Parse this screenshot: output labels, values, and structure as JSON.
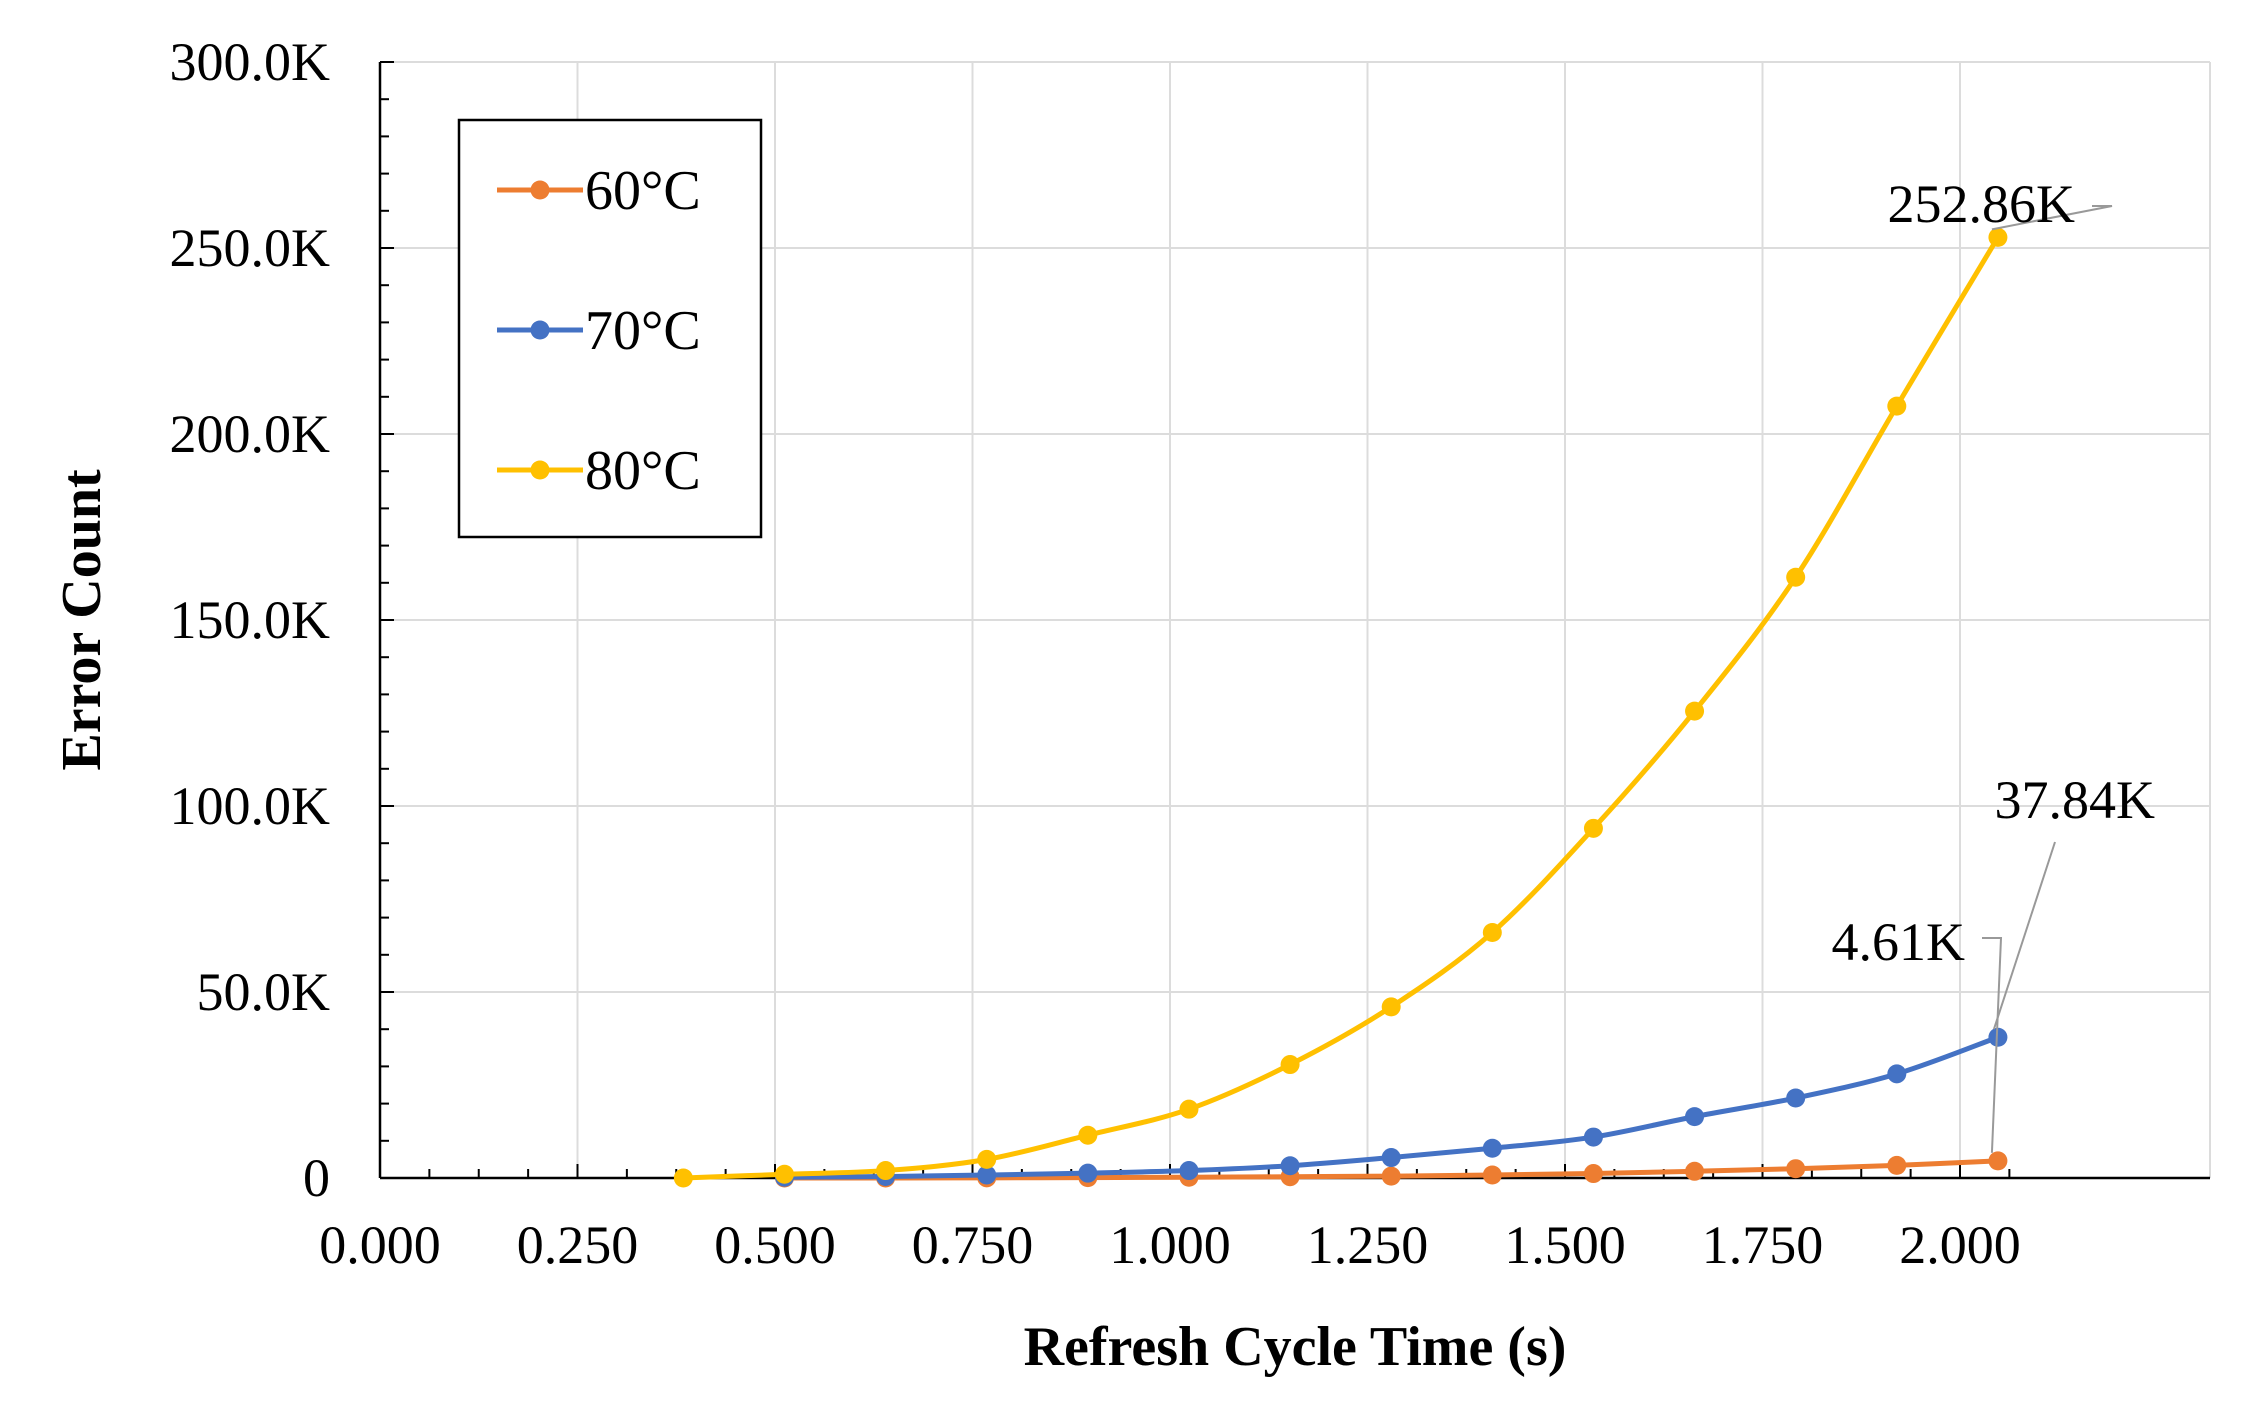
{
  "chart_data": {
    "type": "line",
    "xlabel": "Refresh Cycle Time (s)",
    "ylabel": "Error Count",
    "xlim": [
      0,
      2.1
    ],
    "ylim": [
      0,
      300000
    ],
    "x_tick_labels": [
      "0.000",
      "0.250",
      "0.500",
      "0.750",
      "1.000",
      "1.250",
      "1.500",
      "1.750",
      "2.000"
    ],
    "x_tick_values": [
      0,
      0.25,
      0.5,
      0.75,
      1.0,
      1.25,
      1.5,
      1.75,
      2.0
    ],
    "y_tick_labels": [
      "0",
      "50.0K",
      "100.0K",
      "150.0K",
      "200.0K",
      "250.0K",
      "300.0K"
    ],
    "y_tick_values": [
      0,
      50000,
      100000,
      150000,
      200000,
      250000,
      300000
    ],
    "grid": true,
    "legend_position": "top-left",
    "series": [
      {
        "name": "60°C",
        "color": "#ED7D31",
        "points": [
          [
            0.512,
            0
          ],
          [
            0.64,
            0
          ],
          [
            0.768,
            50
          ],
          [
            0.896,
            100
          ],
          [
            1.024,
            200
          ],
          [
            1.152,
            350
          ],
          [
            1.28,
            500
          ],
          [
            1.408,
            800
          ],
          [
            1.536,
            1200
          ],
          [
            1.664,
            1800
          ],
          [
            1.792,
            2500
          ],
          [
            1.92,
            3400
          ],
          [
            2.048,
            4610
          ]
        ]
      },
      {
        "name": "70°C",
        "color": "#4472C4",
        "points": [
          [
            0.512,
            200
          ],
          [
            0.64,
            400
          ],
          [
            0.768,
            800
          ],
          [
            0.896,
            1300
          ],
          [
            1.024,
            2000
          ],
          [
            1.152,
            3300
          ],
          [
            1.28,
            5500
          ],
          [
            1.408,
            8000
          ],
          [
            1.536,
            11000
          ],
          [
            1.664,
            16500
          ],
          [
            1.792,
            21500
          ],
          [
            1.92,
            28000
          ],
          [
            2.048,
            37840
          ]
        ]
      },
      {
        "name": "80°C",
        "color": "#FFC000",
        "points": [
          [
            0.384,
            0
          ],
          [
            0.512,
            1000
          ],
          [
            0.64,
            2000
          ],
          [
            0.768,
            5000
          ],
          [
            0.896,
            11500
          ],
          [
            1.024,
            18500
          ],
          [
            1.152,
            30500
          ],
          [
            1.28,
            46000
          ],
          [
            1.408,
            66000
          ],
          [
            1.536,
            94000
          ],
          [
            1.664,
            125500
          ],
          [
            1.792,
            161500
          ],
          [
            1.92,
            207500
          ],
          [
            2.048,
            252860
          ]
        ]
      }
    ],
    "annotations": [
      {
        "text": "252.86K",
        "series": "80°C",
        "x": 2.048,
        "y": 252860
      },
      {
        "text": "37.84K",
        "series": "70°C",
        "x": 2.048,
        "y": 37840
      },
      {
        "text": "4.61K",
        "series": "60°C",
        "x": 2.048,
        "y": 4610
      }
    ]
  }
}
